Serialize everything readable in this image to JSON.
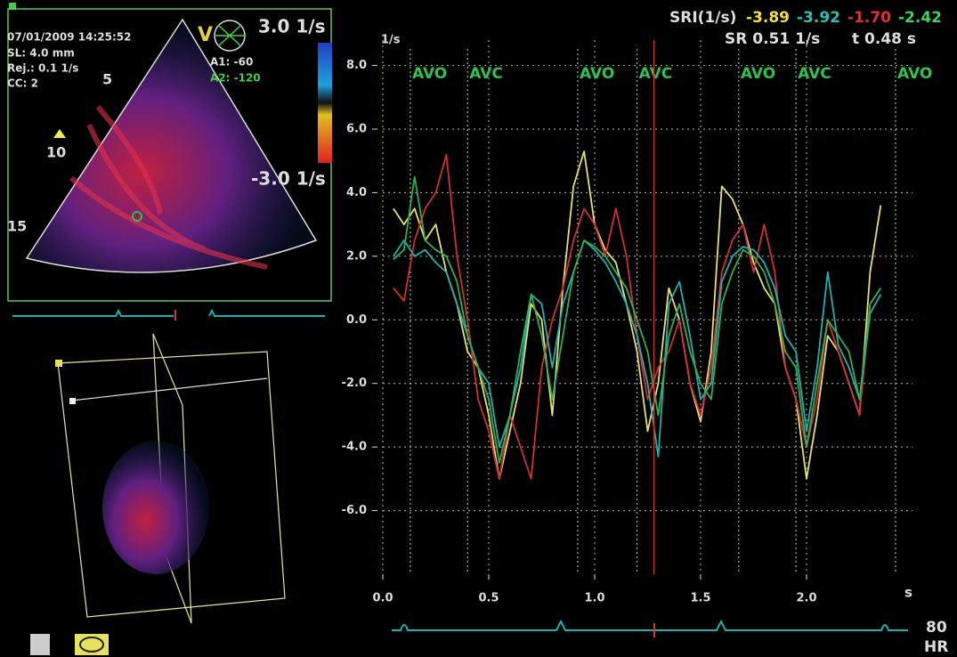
{
  "chart_data": {
    "type": "line",
    "y_label": "1/s",
    "x_label": "s",
    "x": [
      0.05,
      0.1,
      0.15,
      0.2,
      0.25,
      0.3,
      0.35,
      0.4,
      0.45,
      0.5,
      0.55,
      0.6,
      0.65,
      0.7,
      0.75,
      0.8,
      0.85,
      0.9,
      0.95,
      1.0,
      1.05,
      1.1,
      1.15,
      1.2,
      1.25,
      1.3,
      1.35,
      1.4,
      1.45,
      1.5,
      1.55,
      1.6,
      1.65,
      1.7,
      1.75,
      1.8,
      1.85,
      1.9,
      1.95,
      2.0,
      2.05,
      2.1,
      2.15,
      2.2,
      2.25,
      2.3,
      2.35
    ],
    "series": [
      {
        "color": "#e8e070",
        "values": [
          3.5,
          3.0,
          3.5,
          2.5,
          3.0,
          1.5,
          0.5,
          -1.0,
          -1.5,
          -3.0,
          -5.0,
          -3.5,
          -2.0,
          0.5,
          0.0,
          -3.0,
          1.0,
          4.2,
          5.3,
          3.0,
          2.2,
          1.8,
          0.5,
          -1.0,
          -3.5,
          -2.0,
          1.0,
          0.0,
          -2.0,
          -3.2,
          -1.0,
          4.2,
          3.8,
          3.0,
          1.8,
          1.0,
          0.5,
          -1.5,
          -2.5,
          -5.0,
          -3.0,
          -0.5,
          -1.0,
          -2.0,
          -3.0,
          1.5,
          3.6
        ]
      },
      {
        "color": "#d03030",
        "values": [
          1.0,
          0.6,
          2.5,
          3.5,
          4.0,
          5.2,
          2.0,
          0.0,
          -2.5,
          -3.5,
          -5.0,
          -3.0,
          -4.0,
          -5.0,
          -1.5,
          0.0,
          1.0,
          2.5,
          3.5,
          3.0,
          2.0,
          3.5,
          2.0,
          -0.5,
          -2.5,
          -1.5,
          -1.0,
          0.0,
          -2.0,
          -3.0,
          -1.5,
          1.5,
          2.5,
          3.0,
          1.5,
          3.0,
          1.5,
          -1.5,
          -2.5,
          -4.0,
          -2.5,
          0.0,
          -1.0,
          -2.0,
          -3.0,
          0.5,
          1.0
        ]
      },
      {
        "color": "#20b0b0",
        "values": [
          2.0,
          2.5,
          2.0,
          2.2,
          1.8,
          1.5,
          0.5,
          -0.5,
          -1.5,
          -2.0,
          -4.0,
          -3.0,
          -1.5,
          0.8,
          0.5,
          -1.5,
          0.5,
          1.5,
          2.5,
          2.2,
          1.8,
          1.2,
          0.5,
          -0.5,
          -2.0,
          -4.3,
          0.5,
          1.2,
          -0.5,
          -2.5,
          -2.0,
          1.2,
          2.0,
          2.3,
          2.2,
          1.8,
          1.0,
          -0.5,
          -1.0,
          -3.5,
          -1.5,
          1.5,
          -0.8,
          -1.5,
          -2.5,
          0.2,
          0.8
        ]
      },
      {
        "color": "#30b050",
        "values": [
          1.9,
          2.2,
          4.5,
          2.5,
          2.2,
          2.0,
          1.2,
          -0.5,
          -1.5,
          -2.5,
          -4.5,
          -3.0,
          -1.0,
          0.8,
          -0.5,
          -2.5,
          -0.5,
          1.5,
          2.5,
          2.3,
          2.0,
          1.5,
          1.0,
          0.0,
          -1.0,
          -3.0,
          -0.5,
          0.5,
          -1.0,
          -2.0,
          -2.5,
          0.5,
          1.5,
          2.2,
          2.0,
          1.5,
          0.5,
          -1.0,
          -1.5,
          -4.0,
          -2.0,
          0.0,
          -0.5,
          -1.0,
          -2.5,
          0.5,
          1.0
        ]
      }
    ],
    "xlim": [
      0,
      2.5
    ],
    "ylim": [
      -8,
      8.8
    ],
    "xticks": [
      {
        "value": 0,
        "label": "0.0"
      },
      0.5,
      {
        "value": 1,
        "label": "1.0"
      },
      1.5,
      {
        "value": 2,
        "label": "2.0"
      }
    ],
    "yticks": [
      {
        "value": 8,
        "label": "8.0"
      },
      {
        "value": 6,
        "label": "6.0"
      },
      {
        "value": 4,
        "label": "4.0"
      },
      {
        "value": 2,
        "label": "2.0"
      },
      {
        "value": 0,
        "label": "0.0"
      },
      {
        "value": -2,
        "label": "-2.0"
      },
      {
        "value": -4,
        "label": "-4.0"
      },
      {
        "value": -6,
        "label": "-6.0"
      }
    ],
    "grid": true,
    "annotations": [
      {
        "x": 0.13,
        "text": "AVO"
      },
      {
        "x": 0.4,
        "text": "AVC"
      },
      {
        "x": 0.92,
        "text": "AVO"
      },
      {
        "x": 1.2,
        "text": "AVC"
      },
      {
        "x": 1.68,
        "text": "AVO"
      },
      {
        "x": 1.95,
        "text": "AVC"
      },
      {
        "x": 2.42,
        "text": "AVO"
      }
    ],
    "cursor": {
      "x": 1.28,
      "color": "#c83030"
    }
  },
  "header": {
    "sri_label": "SRI(1/s)",
    "sri_values": [
      {
        "text": "-3.89",
        "color": "#f0e040"
      },
      {
        "text": "-3.92",
        "color": "#30c0b0"
      },
      {
        "text": "-1.70",
        "color": "#e03030"
      },
      {
        "text": "-2.42",
        "color": "#40d060"
      }
    ],
    "sr": "SR 0.51 1/s",
    "t": "t 0.48 s"
  },
  "echo": {
    "date": "07/01/2009 14:25:52",
    "sl": "SL: 4.0 mm",
    "rej": "Rej.: 0.1 1/s",
    "cc": "CC: 2",
    "mode": "V",
    "scale_max": "3.0 1/s",
    "scale_min": "-3.0 1/s",
    "a1": "A1: -60",
    "a2": "A2: -120",
    "depths": [
      "5",
      "10",
      "15"
    ]
  },
  "hr": {
    "value": "80",
    "label": "HR"
  }
}
